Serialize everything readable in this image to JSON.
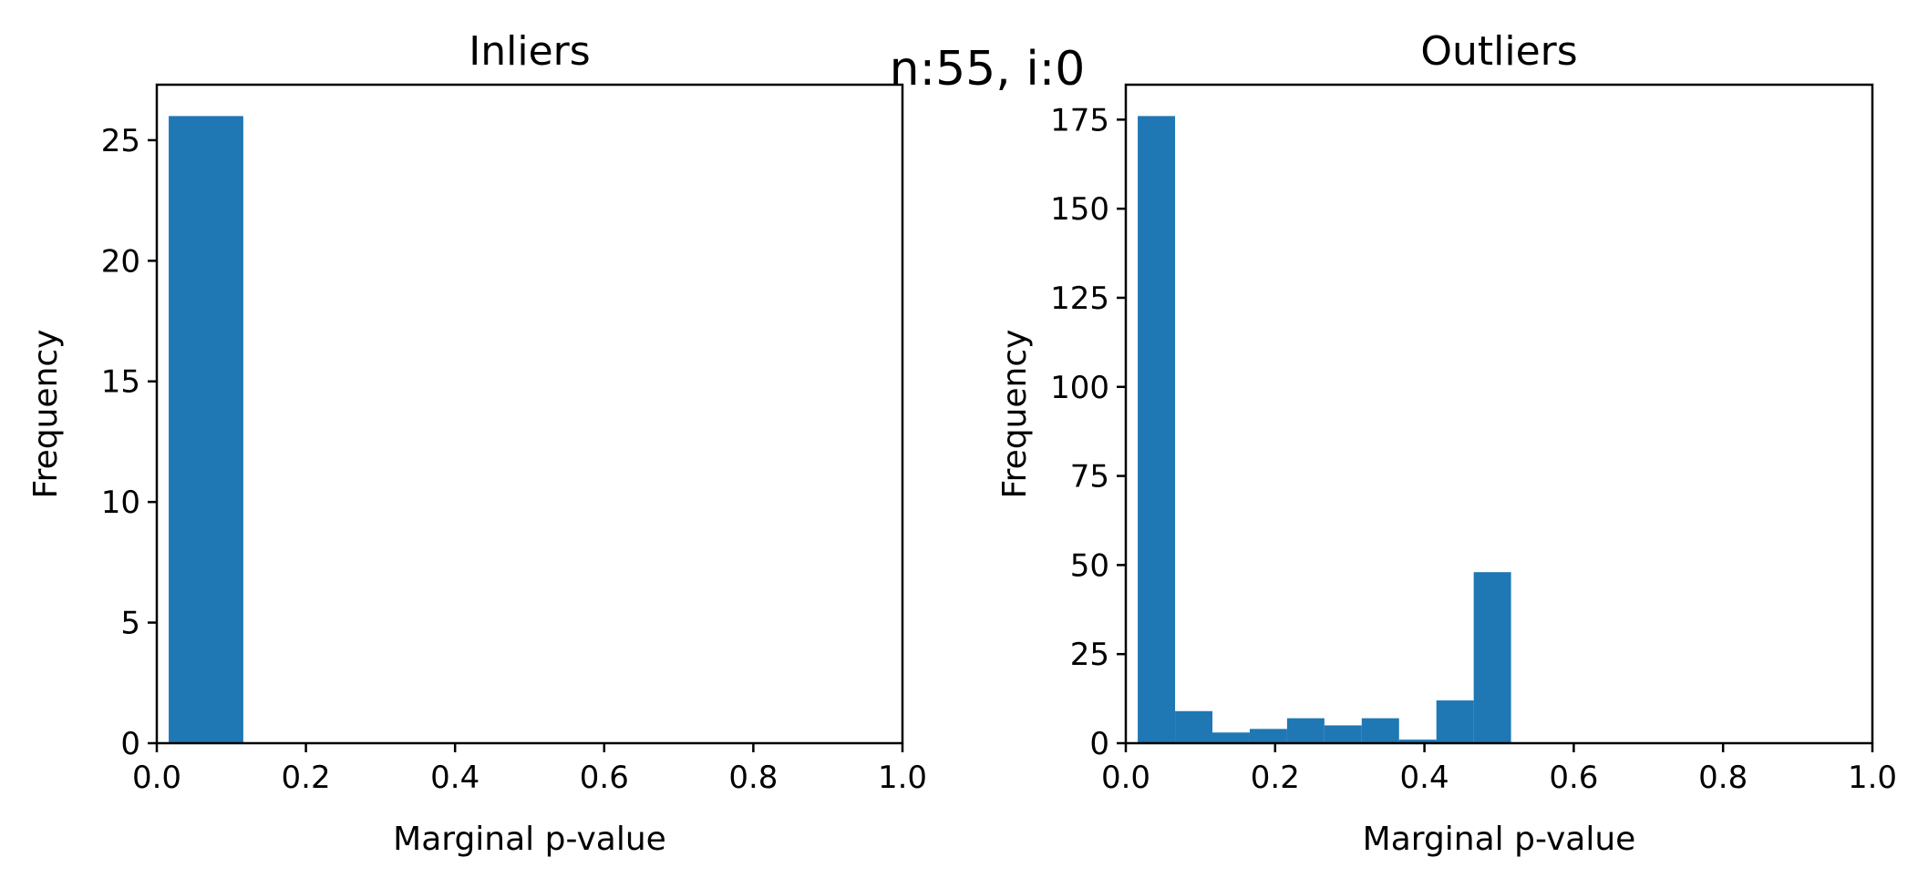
{
  "suptitle": "n:55, i:0",
  "colors": {
    "bar": "#1f77b4"
  },
  "chart_data": [
    {
      "type": "bar",
      "title": "Inliers",
      "xlabel": "Marginal p-value",
      "ylabel": "Frequency",
      "xlim": [
        0.0,
        1.0
      ],
      "ylim": [
        0,
        27.3
      ],
      "xticks": [
        "0.0",
        "0.2",
        "0.4",
        "0.6",
        "0.8",
        "1.0"
      ],
      "yticks": [
        "0",
        "5",
        "10",
        "15",
        "20",
        "25"
      ],
      "grid": false,
      "bins": [
        {
          "x0": 0.016,
          "x1": 0.116,
          "value": 26
        }
      ]
    },
    {
      "type": "bar",
      "title": "Outliers",
      "xlabel": "Marginal p-value",
      "ylabel": "Frequency",
      "xlim": [
        0.0,
        1.0
      ],
      "ylim": [
        0,
        184.8
      ],
      "xticks": [
        "0.0",
        "0.2",
        "0.4",
        "0.6",
        "0.8",
        "1.0"
      ],
      "yticks": [
        "0",
        "25",
        "50",
        "75",
        "100",
        "125",
        "150",
        "175"
      ],
      "grid": false,
      "bins": [
        {
          "x0": 0.016,
          "x1": 0.066,
          "value": 176
        },
        {
          "x0": 0.066,
          "x1": 0.116,
          "value": 9
        },
        {
          "x0": 0.116,
          "x1": 0.166,
          "value": 3
        },
        {
          "x0": 0.166,
          "x1": 0.216,
          "value": 4
        },
        {
          "x0": 0.216,
          "x1": 0.266,
          "value": 7
        },
        {
          "x0": 0.266,
          "x1": 0.316,
          "value": 5
        },
        {
          "x0": 0.316,
          "x1": 0.366,
          "value": 7
        },
        {
          "x0": 0.366,
          "x1": 0.416,
          "value": 1
        },
        {
          "x0": 0.416,
          "x1": 0.466,
          "value": 12
        },
        {
          "x0": 0.466,
          "x1": 0.516,
          "value": 48
        }
      ]
    }
  ]
}
